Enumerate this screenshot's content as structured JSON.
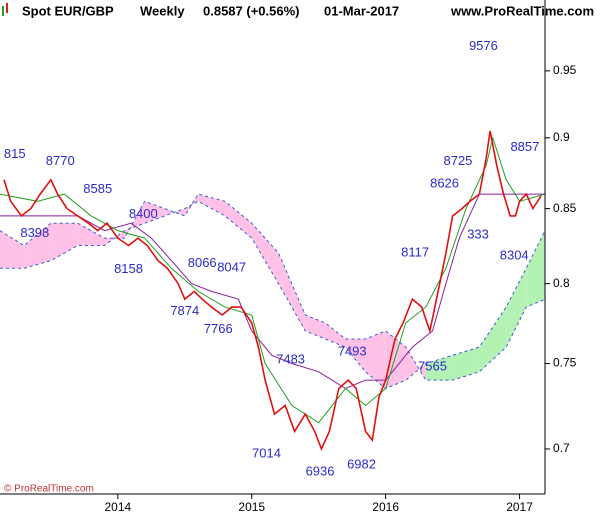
{
  "chart_data": {
    "type": "ichimoku",
    "title": "Spot EUR/GBP",
    "period": "Weekly",
    "quote": "0.8587 (+0.56%)",
    "date": "01-Mar-2017",
    "source": "www.ProRealTime.com",
    "copyright": "© ProRealTime.com",
    "log_scale": true,
    "grid": false,
    "xlim": [
      2013.12,
      2017.19
    ],
    "xticks": [
      2014,
      2015,
      2016,
      2017
    ],
    "ylim": [
      0.681,
      1.006
    ],
    "yticks": [
      0.7,
      0.75,
      0.8,
      0.85,
      0.9,
      0.95
    ],
    "cloud": {
      "x": [
        2013.12,
        2013.3,
        2013.5,
        2013.7,
        2013.9,
        2014.05,
        2014.2,
        2014.35,
        2014.5,
        2014.6,
        2014.8,
        2015.0,
        2015.2,
        2015.4,
        2015.55,
        2015.7,
        2015.85,
        2016.0,
        2016.15,
        2016.3,
        2016.5,
        2016.7,
        2016.9,
        2017.05,
        2017.19
      ],
      "span_a": [
        0.81,
        0.81,
        0.815,
        0.825,
        0.825,
        0.835,
        0.84,
        0.845,
        0.85,
        0.855,
        0.845,
        0.83,
        0.8,
        0.77,
        0.765,
        0.76,
        0.745,
        0.735,
        0.74,
        0.75,
        0.755,
        0.76,
        0.785,
        0.81,
        0.835
      ],
      "span_b": [
        0.835,
        0.825,
        0.84,
        0.84,
        0.83,
        0.83,
        0.855,
        0.85,
        0.845,
        0.86,
        0.855,
        0.84,
        0.82,
        0.78,
        0.775,
        0.765,
        0.765,
        0.77,
        0.76,
        0.74,
        0.74,
        0.745,
        0.76,
        0.785,
        0.79
      ],
      "up_color": "#b4f2b4",
      "down_color": "#ffc2e6",
      "edge_color": "#3a5bd0"
    },
    "series": [
      {
        "color": "#8b1fa0",
        "x": [
          2013.12,
          2013.4,
          2013.7,
          2013.9,
          2014.1,
          2014.25,
          2014.4,
          2014.55,
          2014.7,
          2014.9,
          2015.0,
          2015.15,
          2015.3,
          2015.5,
          2015.7,
          2015.85,
          2016.0,
          2016.2,
          2016.35,
          2016.45,
          2016.55,
          2016.7,
          2016.9,
          2017.19
        ],
        "values": [
          0.845,
          0.845,
          0.845,
          0.835,
          0.84,
          0.83,
          0.815,
          0.8,
          0.795,
          0.79,
          0.77,
          0.755,
          0.75,
          0.745,
          0.735,
          0.74,
          0.74,
          0.76,
          0.77,
          0.8,
          0.83,
          0.86,
          0.86,
          0.86
        ]
      },
      {
        "color": "#22a022",
        "x": [
          2013.12,
          2013.4,
          2013.6,
          2013.8,
          2014.0,
          2014.2,
          2014.4,
          2014.6,
          2014.8,
          2015.0,
          2015.1,
          2015.3,
          2015.5,
          2015.7,
          2015.85,
          2016.0,
          2016.15,
          2016.3,
          2016.45,
          2016.6,
          2016.75,
          2016.8,
          2016.9,
          2017.0,
          2017.19
        ],
        "values": [
          0.86,
          0.855,
          0.86,
          0.845,
          0.835,
          0.83,
          0.81,
          0.795,
          0.785,
          0.78,
          0.75,
          0.725,
          0.715,
          0.735,
          0.725,
          0.735,
          0.775,
          0.785,
          0.81,
          0.85,
          0.88,
          0.9,
          0.87,
          0.855,
          0.86
        ]
      },
      {
        "color": "#e01010",
        "x": [
          2013.15,
          2013.2,
          2013.28,
          2013.35,
          2013.42,
          2013.5,
          2013.55,
          2013.62,
          2013.7,
          2013.78,
          2013.85,
          2013.92,
          2014.0,
          2014.08,
          2014.15,
          2014.22,
          2014.3,
          2014.37,
          2014.45,
          2014.5,
          2014.57,
          2014.63,
          2014.7,
          2014.78,
          2014.85,
          2014.92,
          2015.0,
          2015.05,
          2015.1,
          2015.17,
          2015.25,
          2015.32,
          2015.4,
          2015.47,
          2015.52,
          2015.58,
          2015.65,
          2015.72,
          2015.78,
          2015.85,
          2015.9,
          2015.95,
          2016.0,
          2016.07,
          2016.13,
          2016.2,
          2016.27,
          2016.33,
          2016.38,
          2016.45,
          2016.5,
          2016.57,
          2016.63,
          2016.7,
          2016.75,
          2016.78,
          2016.83,
          2016.88,
          2016.93,
          2016.97,
          2017.0,
          2017.05,
          2017.1,
          2017.16
        ],
        "values": [
          0.87,
          0.855,
          0.845,
          0.85,
          0.86,
          0.87,
          0.86,
          0.85,
          0.845,
          0.84,
          0.835,
          0.84,
          0.83,
          0.825,
          0.83,
          0.825,
          0.815,
          0.81,
          0.8,
          0.79,
          0.795,
          0.79,
          0.785,
          0.78,
          0.785,
          0.785,
          0.775,
          0.76,
          0.74,
          0.72,
          0.725,
          0.71,
          0.72,
          0.71,
          0.7,
          0.71,
          0.735,
          0.74,
          0.735,
          0.71,
          0.705,
          0.73,
          0.74,
          0.765,
          0.775,
          0.79,
          0.785,
          0.77,
          0.79,
          0.82,
          0.845,
          0.85,
          0.855,
          0.86,
          0.885,
          0.905,
          0.88,
          0.86,
          0.845,
          0.845,
          0.855,
          0.86,
          0.85,
          0.8587
        ]
      }
    ],
    "annotations": [
      {
        "text": "815",
        "x": 2013.23,
        "y": 0.888
      },
      {
        "text": "8770",
        "x": 2013.57,
        "y": 0.883
      },
      {
        "text": "8585",
        "x": 2013.85,
        "y": 0.863
      },
      {
        "text": "8398",
        "x": 2013.38,
        "y": 0.833
      },
      {
        "text": "8400",
        "x": 2014.19,
        "y": 0.846
      },
      {
        "text": "8158",
        "x": 2014.08,
        "y": 0.809
      },
      {
        "text": "8066",
        "x": 2014.63,
        "y": 0.813
      },
      {
        "text": "8047",
        "x": 2014.85,
        "y": 0.81
      },
      {
        "text": "7874",
        "x": 2014.5,
        "y": 0.782
      },
      {
        "text": "7766",
        "x": 2014.75,
        "y": 0.771
      },
      {
        "text": "7483",
        "x": 2015.29,
        "y": 0.752
      },
      {
        "text": "7493",
        "x": 2015.75,
        "y": 0.757
      },
      {
        "text": "7014",
        "x": 2015.11,
        "y": 0.697
      },
      {
        "text": "6936",
        "x": 2015.51,
        "y": 0.687
      },
      {
        "text": "6982",
        "x": 2015.82,
        "y": 0.691
      },
      {
        "text": "7565",
        "x": 2016.35,
        "y": 0.748
      },
      {
        "text": "8117",
        "x": 2016.22,
        "y": 0.82
      },
      {
        "text": "8626",
        "x": 2016.44,
        "y": 0.867
      },
      {
        "text": "8725",
        "x": 2016.54,
        "y": 0.883
      },
      {
        "text": "333",
        "x": 2016.69,
        "y": 0.832
      },
      {
        "text": "9576",
        "x": 2016.73,
        "y": 0.969
      },
      {
        "text": "8857",
        "x": 2017.04,
        "y": 0.893
      },
      {
        "text": "8304",
        "x": 2016.96,
        "y": 0.818
      }
    ]
  }
}
